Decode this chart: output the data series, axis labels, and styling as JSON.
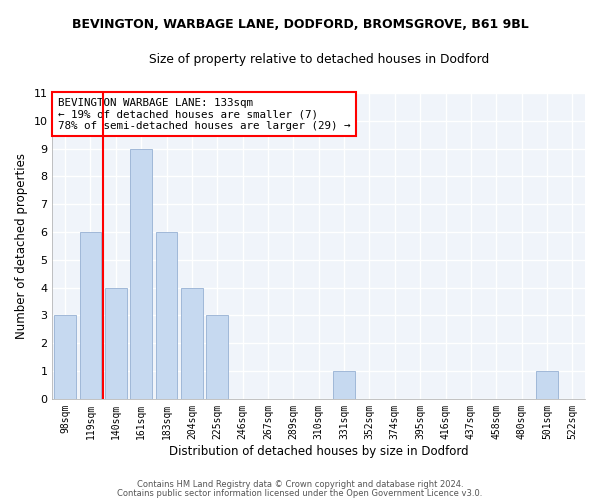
{
  "title1": "BEVINGTON, WARBAGE LANE, DODFORD, BROMSGROVE, B61 9BL",
  "title2": "Size of property relative to detached houses in Dodford",
  "xlabel": "Distribution of detached houses by size in Dodford",
  "ylabel": "Number of detached properties",
  "bin_labels": [
    "98sqm",
    "119sqm",
    "140sqm",
    "161sqm",
    "183sqm",
    "204sqm",
    "225sqm",
    "246sqm",
    "267sqm",
    "289sqm",
    "310sqm",
    "331sqm",
    "352sqm",
    "374sqm",
    "395sqm",
    "416sqm",
    "437sqm",
    "458sqm",
    "480sqm",
    "501sqm",
    "522sqm"
  ],
  "bar_heights": [
    3,
    6,
    4,
    9,
    6,
    4,
    3,
    0,
    0,
    0,
    0,
    1,
    0,
    0,
    0,
    0,
    0,
    0,
    0,
    1,
    0
  ],
  "bar_color": "#c6d9f0",
  "bar_edge_color": "#a0b8d8",
  "vline_x_index": 1.5,
  "annotation_line1": "BEVINGTON WARBAGE LANE: 133sqm",
  "annotation_line2": "← 19% of detached houses are smaller (7)",
  "annotation_line3": "78% of semi-detached houses are larger (29) →",
  "annotation_box_color": "white",
  "annotation_box_edge_color": "red",
  "vline_color": "red",
  "ylim": [
    0,
    11
  ],
  "yticks": [
    0,
    1,
    2,
    3,
    4,
    5,
    6,
    7,
    8,
    9,
    10,
    11
  ],
  "footer1": "Contains HM Land Registry data © Crown copyright and database right 2024.",
  "footer2": "Contains public sector information licensed under the Open Government Licence v3.0.",
  "bg_color": "#f0f4fa"
}
